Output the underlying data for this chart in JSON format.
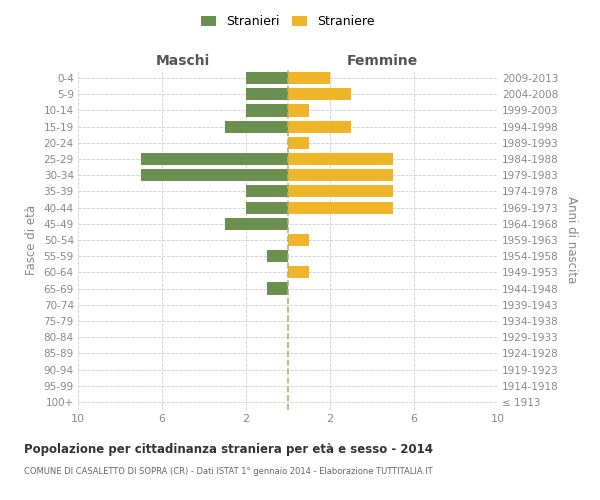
{
  "age_groups": [
    "100+",
    "95-99",
    "90-94",
    "85-89",
    "80-84",
    "75-79",
    "70-74",
    "65-69",
    "60-64",
    "55-59",
    "50-54",
    "45-49",
    "40-44",
    "35-39",
    "30-34",
    "25-29",
    "20-24",
    "15-19",
    "10-14",
    "5-9",
    "0-4"
  ],
  "birth_years": [
    "≤ 1913",
    "1914-1918",
    "1919-1923",
    "1924-1928",
    "1929-1933",
    "1934-1938",
    "1939-1943",
    "1944-1948",
    "1949-1953",
    "1954-1958",
    "1959-1963",
    "1964-1968",
    "1969-1973",
    "1974-1978",
    "1979-1983",
    "1984-1988",
    "1989-1993",
    "1994-1998",
    "1999-2003",
    "2004-2008",
    "2009-2013"
  ],
  "males": [
    0,
    0,
    0,
    0,
    0,
    0,
    0,
    1,
    0,
    1,
    0,
    3,
    2,
    2,
    7,
    7,
    0,
    3,
    2,
    2,
    2
  ],
  "females": [
    0,
    0,
    0,
    0,
    0,
    0,
    0,
    0,
    1,
    0,
    1,
    0,
    5,
    5,
    5,
    5,
    1,
    3,
    1,
    3,
    2
  ],
  "male_color": "#6b8f4e",
  "female_color": "#f0b429",
  "title": "Popolazione per cittadinanza straniera per età e sesso - 2014",
  "subtitle": "COMUNE DI CASALETTO DI SOPRA (CR) - Dati ISTAT 1° gennaio 2014 - Elaborazione TUTTITALIA.IT",
  "ylabel_left": "Fasce di età",
  "ylabel_right": "Anni di nascita",
  "xlabel_left": "Maschi",
  "xlabel_right": "Femmine",
  "legend_male": "Stranieri",
  "legend_female": "Straniere",
  "xlim": 10,
  "background_color": "#ffffff",
  "grid_color": "#cccccc",
  "tick_label_color": "#888888",
  "bar_height": 0.75,
  "xticks": [
    -10,
    -6,
    -2,
    2,
    6,
    10
  ]
}
